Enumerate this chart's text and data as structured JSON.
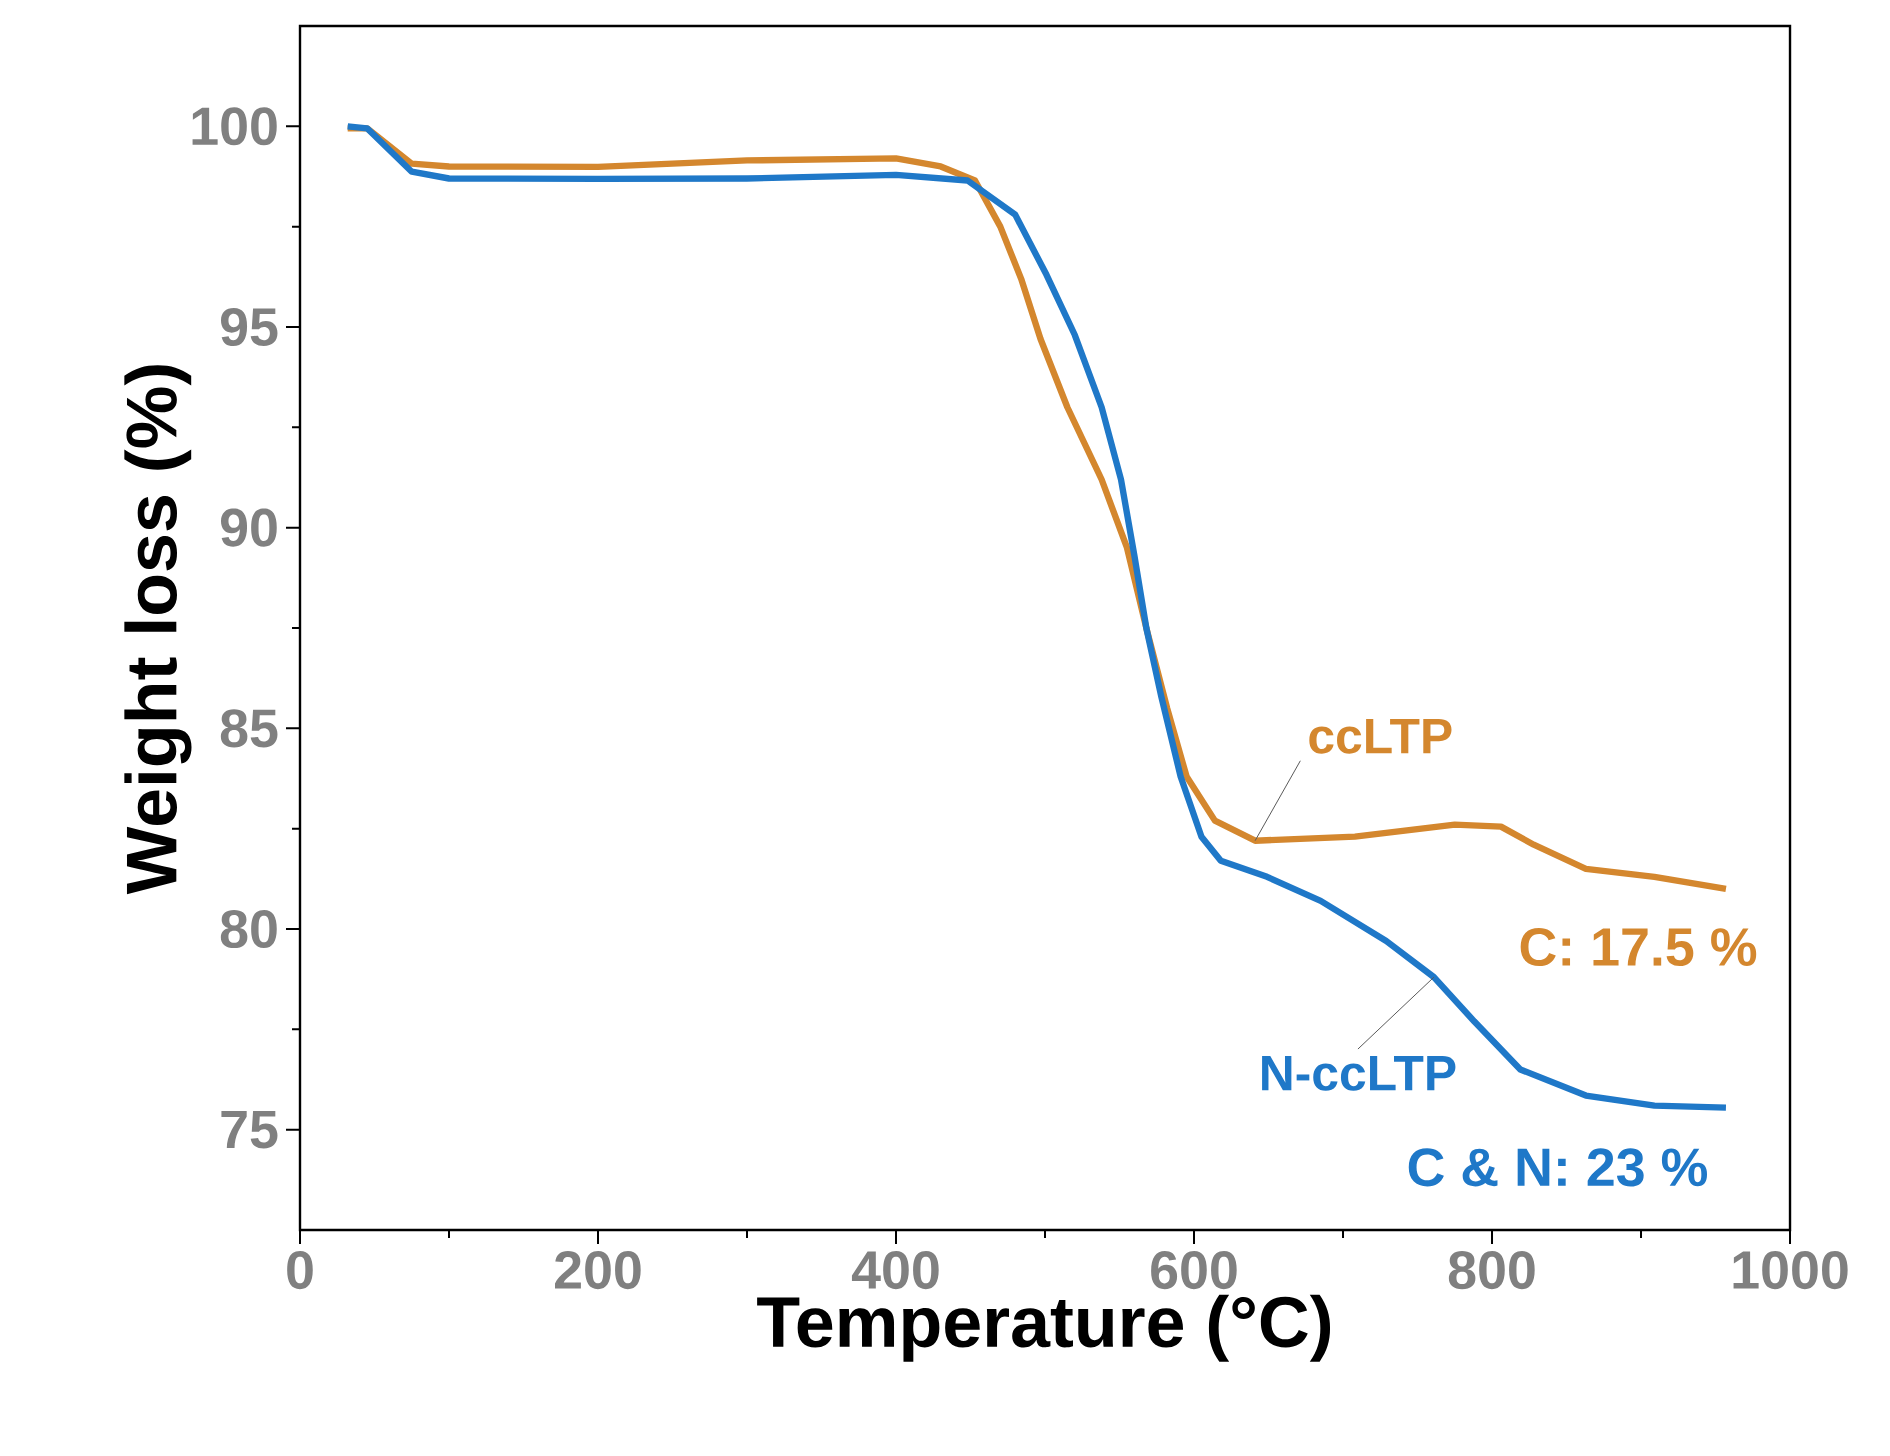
{
  "chart_data": {
    "type": "line",
    "xlabel": "Temperature (°C)",
    "ylabel": "Weight loss (%)",
    "xlim": [
      0,
      1000
    ],
    "ylim": [
      72.5,
      102.5
    ],
    "xticks": [
      0,
      200,
      400,
      600,
      800,
      1000
    ],
    "yticks": [
      75,
      80,
      85,
      90,
      95,
      100
    ],
    "grid": false,
    "marker": "none",
    "line_style": "solid",
    "annotations": [
      "C: 17.5 %",
      "C & N: 23 %"
    ],
    "series": [
      {
        "name": "ccLTP",
        "color": "#d4872e",
        "x": [
          32,
          45,
          75,
          100,
          200,
          300,
          400,
          430,
          453,
          470,
          484,
          497,
          515,
          538,
          555,
          568,
          582,
          595,
          614,
          641,
          708,
          775,
          806,
          828,
          863,
          909,
          957
        ],
        "values": [
          99.95,
          99.95,
          99.07,
          99.0,
          98.99,
          99.15,
          99.2,
          99.0,
          98.65,
          97.5,
          96.2,
          94.7,
          93.0,
          91.2,
          89.5,
          87.5,
          85.5,
          83.8,
          82.7,
          82.2,
          82.3,
          82.6,
          82.55,
          82.1,
          81.5,
          81.3,
          81.0
        ]
      },
      {
        "name": "N-ccLTP",
        "color": "#1f78c8",
        "x": [
          32,
          45,
          75,
          100,
          200,
          300,
          400,
          448,
          480,
          501,
          520,
          538,
          551,
          560,
          568,
          578,
          591,
          605,
          618,
          649,
          685,
          729,
          761,
          788,
          819,
          863,
          909,
          957
        ],
        "values": [
          100.0,
          99.95,
          98.87,
          98.7,
          98.69,
          98.7,
          98.79,
          98.65,
          97.8,
          96.3,
          94.8,
          93.0,
          91.2,
          89.3,
          87.5,
          85.8,
          83.8,
          82.3,
          81.7,
          81.3,
          80.7,
          79.7,
          78.8,
          77.7,
          76.5,
          75.85,
          75.6,
          75.55
        ]
      }
    ]
  }
}
